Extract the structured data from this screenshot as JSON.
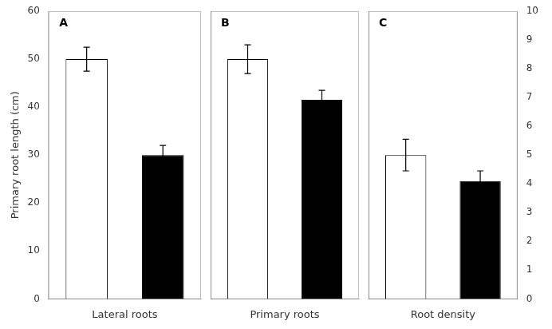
{
  "chart_data": [
    {
      "type": "bar",
      "xlabel": "Lateral roots",
      "ylabel": "Primary root length (cm)",
      "annotations": [
        "A"
      ],
      "categories": [
        null,
        null
      ],
      "series": [
        {
          "values": [
            50,
            30
          ],
          "errors": [
            2.5,
            2.0
          ],
          "colors": [
            "white",
            "black"
          ]
        }
      ],
      "ylim": [
        0,
        60
      ],
      "yticks": [
        0,
        10,
        20,
        30,
        40,
        50,
        60
      ],
      "grid": false,
      "tick_labels": "y"
    },
    {
      "type": "bar",
      "xlabel": "Primary roots",
      "annotations": [
        "B"
      ],
      "categories": [
        null,
        null
      ],
      "series": [
        {
          "values": [
            50,
            41.5
          ],
          "errors": [
            3.0,
            2.0
          ],
          "colors": [
            "white",
            "black"
          ]
        }
      ],
      "ylim": [
        0,
        60
      ],
      "yticks": [
        0,
        10,
        20,
        30,
        40,
        50,
        60
      ],
      "grid": false,
      "tick_labels": false
    },
    {
      "type": "bar",
      "xlabel": "Root density",
      "annotations": [
        "C"
      ],
      "categories": [
        null,
        null
      ],
      "series": [
        {
          "values": [
            5.0,
            4.1
          ],
          "errors": [
            0.55,
            0.35
          ],
          "colors": [
            "white",
            "black"
          ],
          "axis": "y2"
        }
      ],
      "y2lim": [
        0,
        10
      ],
      "y2ticks": [
        0,
        1,
        2,
        3,
        4,
        5,
        6,
        7,
        8,
        9,
        10
      ],
      "grid": false
    }
  ]
}
